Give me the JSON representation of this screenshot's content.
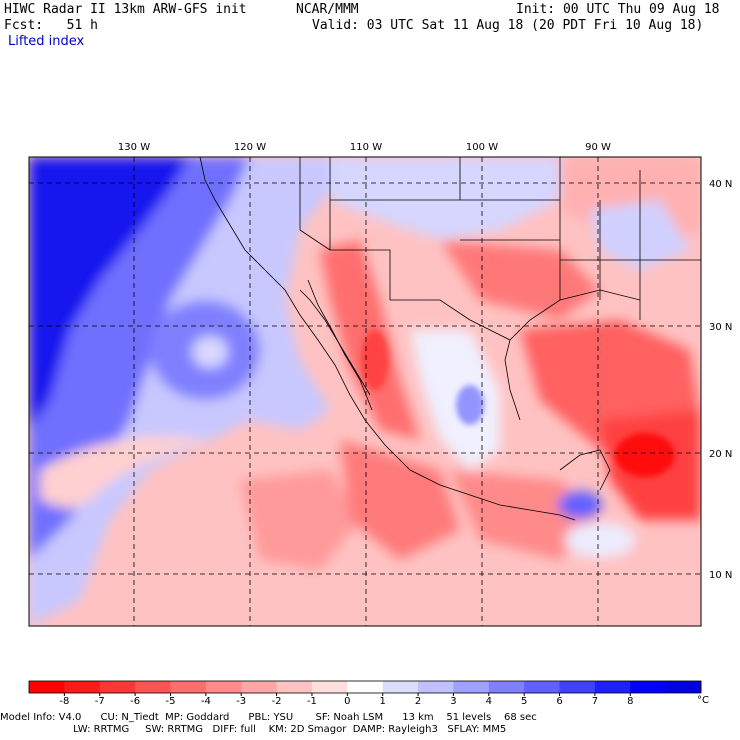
{
  "header": {
    "model": "HIWC Radar II 13km ARW-GFS init",
    "org": "NCAR/MMM",
    "init": "Init: 00 UTC Thu 09 Aug 18",
    "fcst": "Fcst:   51 h",
    "valid": "Valid: 03 UTC Sat 11 Aug 18 (20 PDT Fri 10 Aug 18)",
    "field": "Lifted index"
  },
  "map": {
    "lon_labels": [
      "130 W",
      "120 W",
      "110 W",
      "100 W",
      "90 W"
    ],
    "lat_labels": [
      "40 N",
      "30 N",
      "20 N",
      "10 N"
    ],
    "gridline_color": "#000000"
  },
  "colorbar": {
    "unit": "°C",
    "ticks": [
      "-8",
      "-7",
      "-6",
      "-5",
      "-4",
      "-3",
      "-2",
      "-1",
      "0",
      "1",
      "2",
      "3",
      "4",
      "5",
      "6",
      "7",
      "8"
    ],
    "colors": [
      "#ff0000",
      "#ff1a1a",
      "#ff3636",
      "#ff5252",
      "#ff6e6e",
      "#ff8a8a",
      "#ffa6a6",
      "#ffc2c2",
      "#ffdede",
      "#ffffff",
      "#dcdcff",
      "#c0c0ff",
      "#a0a0ff",
      "#8080ff",
      "#6060ff",
      "#4040ff",
      "#2020ff",
      "#0000ff",
      "#0000e6"
    ]
  },
  "footer": {
    "line1": "Model Info: V4.0      CU: N_Tiedt  MP: Goddard      PBL: YSU       SF: Noah LSM      13 km    51 levels    68 sec",
    "line2": "                       LW: RRTMG     SW: RRTMG   DIFF: full    KM: 2D Smagor  DAMP: Rayleigh3   SFLAY: MM5"
  }
}
